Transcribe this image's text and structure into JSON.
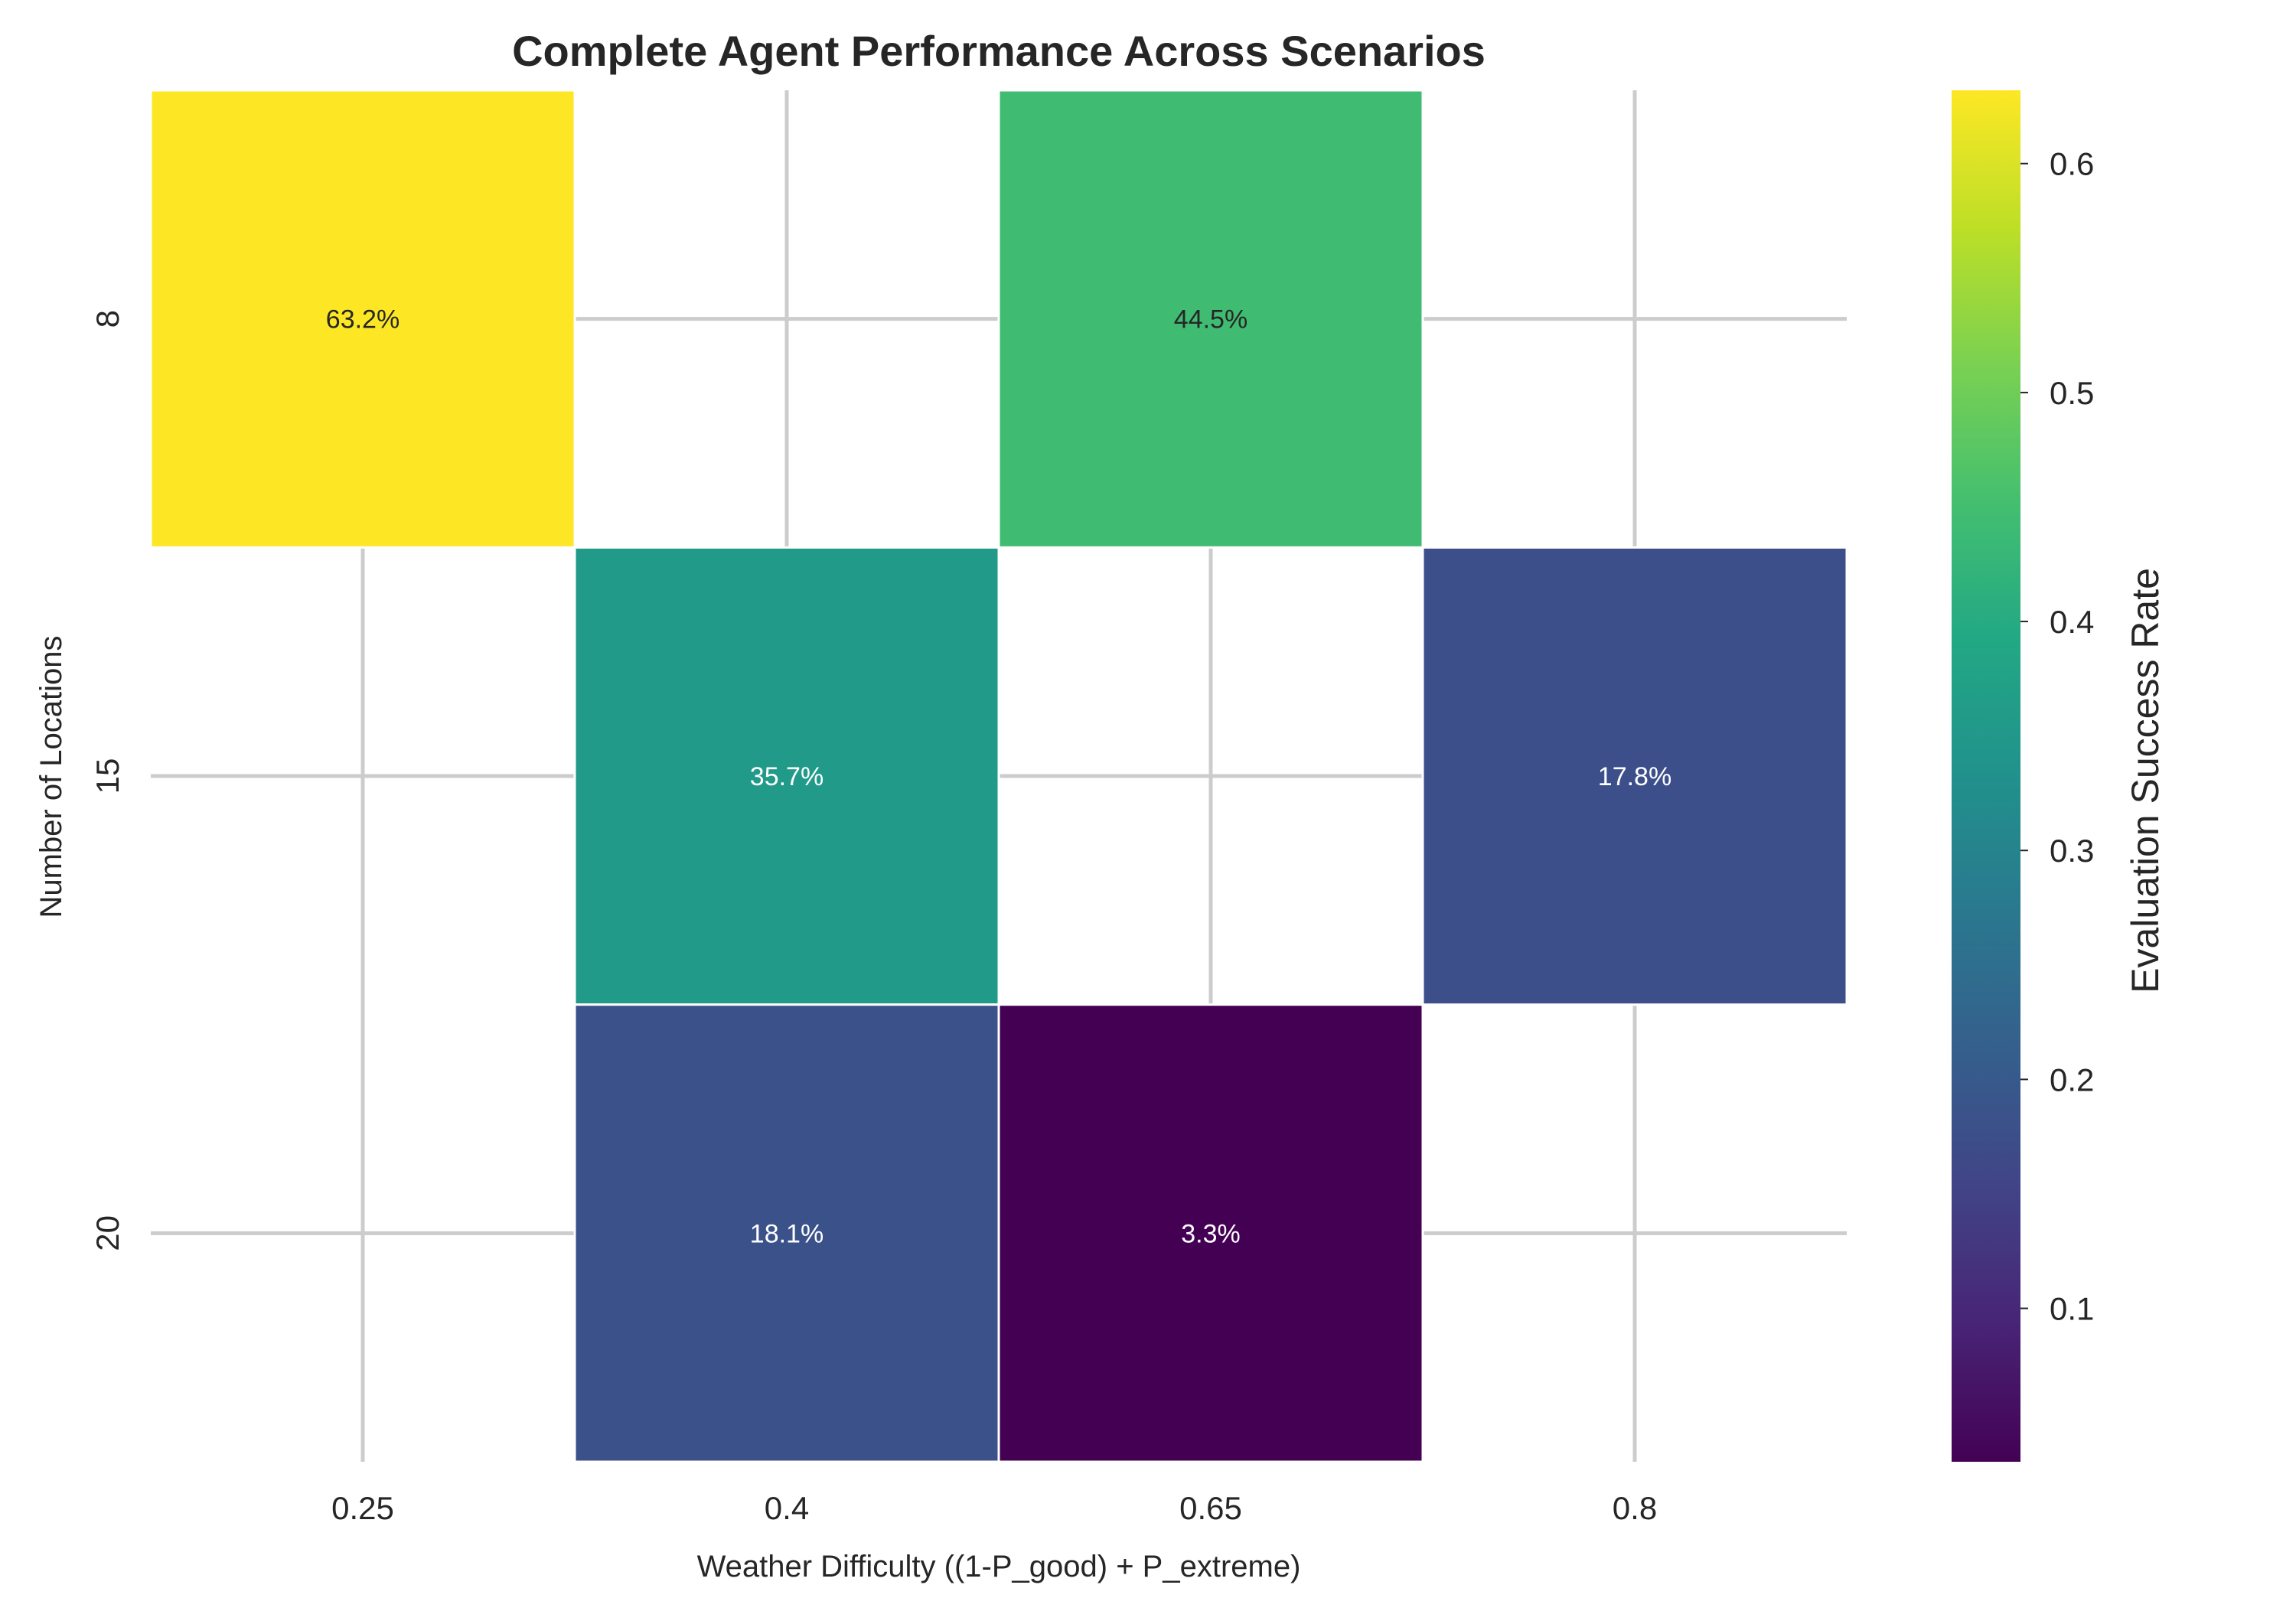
{
  "chart_data": {
    "type": "heatmap",
    "title": "Complete Agent Performance Across Scenarios",
    "xlabel": "Weather Difficulty ((1-P_good) + P_extreme)",
    "ylabel": "Number of Locations",
    "x_categories": [
      "0.25",
      "0.4",
      "0.65",
      "0.8"
    ],
    "y_categories": [
      "8",
      "15",
      "20"
    ],
    "values": [
      [
        0.632,
        null,
        0.445,
        null
      ],
      [
        null,
        0.357,
        null,
        0.178
      ],
      [
        null,
        0.181,
        0.033,
        null
      ]
    ],
    "cell_labels": [
      [
        "63.2%",
        "",
        "44.5%",
        ""
      ],
      [
        "",
        "35.7%",
        "",
        "17.8%"
      ],
      [
        "",
        "18.1%",
        "3.3%",
        ""
      ]
    ],
    "colormap": "viridis",
    "colorbar": {
      "label": "Evaluation Success Rate",
      "range": [
        0.033,
        0.632
      ],
      "ticks": [
        "0.1",
        "0.2",
        "0.3",
        "0.4",
        "0.5",
        "0.6"
      ],
      "tick_values": [
        0.1,
        0.2,
        0.3,
        0.4,
        0.5,
        0.6
      ]
    },
    "grid": true,
    "colors": {
      "grid": "#cccccc",
      "cell_border": "#ffffff",
      "label_dark": "#262626",
      "label_light": "#ffffff"
    }
  }
}
